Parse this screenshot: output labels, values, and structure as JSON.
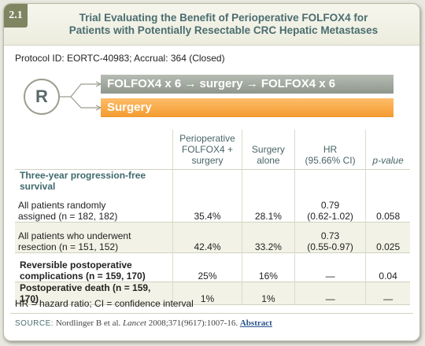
{
  "figure": {
    "number": "2.1",
    "title_line1": "Trial Evaluating the Benefit of Perioperative FOLFOX4 for",
    "title_line2": "Patients with Potentially Resectable CRC Hepatic Metastases"
  },
  "protocol": "Protocol ID: EORTC-40983; Accrual: 364 (Closed)",
  "randomization": {
    "label": "R",
    "arm1": "FOLFOX4 x 6 → surgery → FOLFOX4 x 6",
    "arm2": "Surgery",
    "colors": {
      "arm1": "#9ba39a",
      "arm2": "#f7a53c"
    }
  },
  "table": {
    "headers": {
      "col1_line1": "Perioperative",
      "col1_line2": "FOLFOX4 +",
      "col1_line3": "surgery",
      "col2_line1": "Surgery",
      "col2_line2": "alone",
      "col3_line1": "HR",
      "col3_line2": "(95.66% CI)",
      "col4": "p-value"
    },
    "section": "Three-year progression-free survival",
    "rows": [
      {
        "label_line1": "All patients randomly",
        "label_line2": "assigned (n = 182, 182)",
        "v1": "35.4%",
        "v2": "28.1%",
        "hr": "0.79",
        "ci": "(0.62-1.02)",
        "p": "0.058"
      },
      {
        "label_line1": "All patients who underwent",
        "label_line2": "resection (n = 151, 152)",
        "v1": "42.4%",
        "v2": "33.2%",
        "hr": "0.73",
        "ci": "(0.55-0.97)",
        "p": "0.025"
      },
      {
        "label_line1": "Reversible postoperative",
        "label_line2": "complications (n = 159, 170)",
        "v1": "25%",
        "v2": "16%",
        "hr": "—",
        "p": "0.04"
      },
      {
        "label": "Postoperative death (n = 159, 170)",
        "v1": "1%",
        "v2": "1%",
        "hr": "—",
        "p": "—"
      }
    ]
  },
  "footnote": "HR = hazard ratio; CI = confidence interval",
  "source": {
    "label": "SOURCE:",
    "authors": "Nordlinger B et al.",
    "journal": "Lancet",
    "citation": "2008;371(9617):1007-16.",
    "link": "Abstract"
  }
}
